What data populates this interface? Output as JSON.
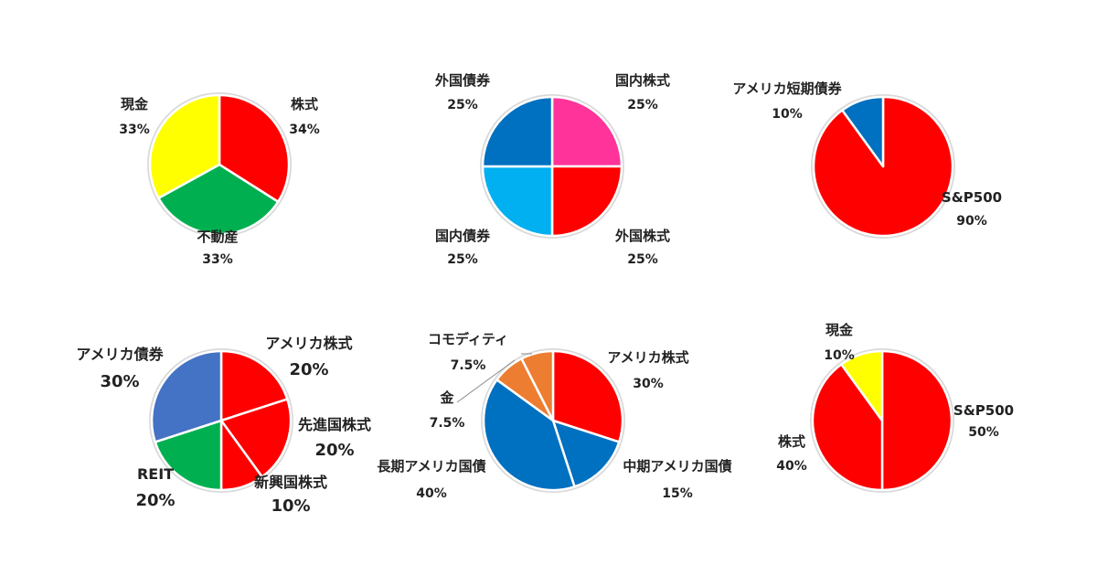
{
  "chart_data": [
    {
      "type": "pie",
      "slices": [
        {
          "label": "株式",
          "value": 34,
          "value_text": "34%",
          "color": "#FF0000"
        },
        {
          "label": "不動産",
          "value": 33,
          "value_text": "33%",
          "color": "#00B050"
        },
        {
          "label": "現金",
          "value": 33,
          "value_text": "33%",
          "color": "#FFFF00"
        }
      ]
    },
    {
      "type": "pie",
      "slices": [
        {
          "label": "国内株式",
          "value": 25,
          "value_text": "25%",
          "color": "#FF3399"
        },
        {
          "label": "外国株式",
          "value": 25,
          "value_text": "25%",
          "color": "#FF0000"
        },
        {
          "label": "国内債券",
          "value": 25,
          "value_text": "25%",
          "color": "#00B0F0"
        },
        {
          "label": "外国債券",
          "value": 25,
          "value_text": "25%",
          "color": "#0070C0"
        }
      ]
    },
    {
      "type": "pie",
      "slices": [
        {
          "label": "S&P500",
          "value": 90,
          "value_text": "90%",
          "color": "#FF0000"
        },
        {
          "label": "アメリカ短期債券",
          "value": 10,
          "value_text": "10%",
          "color": "#0070C0"
        }
      ]
    },
    {
      "type": "pie",
      "slices": [
        {
          "label": "アメリカ株式",
          "value": 20,
          "value_text": "20%",
          "color": "#FF0000"
        },
        {
          "label": "先進国株式",
          "value": 20,
          "value_text": "20%",
          "color": "#FF0000"
        },
        {
          "label": "新興国株式",
          "value": 10,
          "value_text": "10%",
          "color": "#FF0000"
        },
        {
          "label": "REIT",
          "value": 20,
          "value_text": "20%",
          "color": "#00B050"
        },
        {
          "label": "アメリカ債券",
          "value": 30,
          "value_text": "30%",
          "color": "#4472C4"
        }
      ]
    },
    {
      "type": "pie",
      "slices": [
        {
          "label": "アメリカ株式",
          "value": 30,
          "value_text": "30%",
          "color": "#FF0000"
        },
        {
          "label": "中期アメリカ国債",
          "value": 15,
          "value_text": "15%",
          "color": "#0070C0"
        },
        {
          "label": "長期アメリカ国債",
          "value": 40,
          "value_text": "40%",
          "color": "#0070C0"
        },
        {
          "label": "金",
          "value": 7.5,
          "value_text": "7.5%",
          "color": "#ED7D31"
        },
        {
          "label": "コモディティ",
          "value": 7.5,
          "value_text": "7.5%",
          "color": "#ED7D31"
        }
      ]
    },
    {
      "type": "pie",
      "slices": [
        {
          "label": "S&P500",
          "value": 50,
          "value_text": "50%",
          "color": "#FF0000"
        },
        {
          "label": "株式",
          "value": 40,
          "value_text": "40%",
          "color": "#FF0000"
        },
        {
          "label": "現金",
          "value": 10,
          "value_text": "10%",
          "color": "#FFFF00"
        }
      ]
    }
  ]
}
